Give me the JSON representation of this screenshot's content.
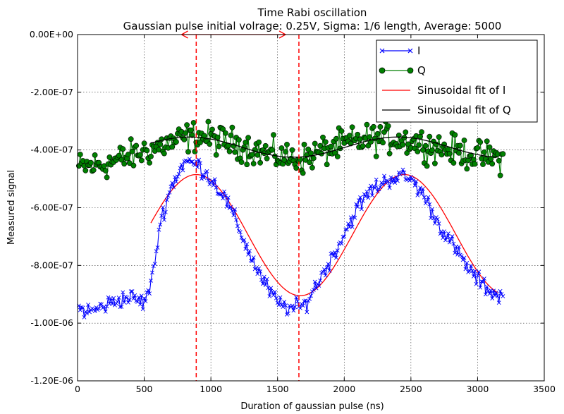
{
  "chart_data": {
    "type": "line",
    "title": "Time Rabi oscillation",
    "subtitle": "Gaussian pulse initial volrage: 0.25V, Sigma: 1/6 length, Average: 5000",
    "xlabel": "Duration of gaussian pulse (ns)",
    "ylabel": "Measured signal",
    "xlim": [
      0,
      3500
    ],
    "ylim": [
      -1.2e-06,
      0
    ],
    "xticks": [
      0,
      500,
      1000,
      1500,
      2000,
      2500,
      3000,
      3500
    ],
    "xtick_labels": [
      "0",
      "500",
      "1000",
      "1500",
      "2000",
      "2500",
      "3000",
      "3500"
    ],
    "yticks": [
      0,
      -2e-07,
      -4e-07,
      -6e-07,
      -8e-07,
      -1e-06,
      -1.2e-06
    ],
    "ytick_labels": [
      "0.00E+00",
      "-2.00E-07",
      "-4.00E-07",
      "-6.00E-07",
      "-8.00E-07",
      "-1.00E-06",
      "-1.20E-06"
    ],
    "grid": true,
    "legend_position": "top-right",
    "x_range": {
      "start": 10,
      "end": 3190,
      "step": 10
    },
    "series": [
      {
        "name": "I",
        "style": "line-x-markers",
        "color": "#0000ff",
        "description_points": [
          [
            10,
            -9.5e-07
          ],
          [
            100,
            -9.6e-07
          ],
          [
            200,
            -9.4e-07
          ],
          [
            300,
            -9.2e-07
          ],
          [
            400,
            -9.1e-07
          ],
          [
            500,
            -9.3e-07
          ],
          [
            560,
            -8.5e-07
          ],
          [
            620,
            -6.5e-07
          ],
          [
            700,
            -5.3e-07
          ],
          [
            800,
            -4.4e-07
          ],
          [
            900,
            -4.5e-07
          ],
          [
            1000,
            -5e-07
          ],
          [
            1100,
            -5.6e-07
          ],
          [
            1200,
            -6.6e-07
          ],
          [
            1300,
            -7.7e-07
          ],
          [
            1400,
            -8.6e-07
          ],
          [
            1500,
            -9.3e-07
          ],
          [
            1600,
            -9.5e-07
          ],
          [
            1700,
            -9.4e-07
          ],
          [
            1800,
            -8.6e-07
          ],
          [
            1900,
            -7.8e-07
          ],
          [
            2000,
            -6.9e-07
          ],
          [
            2100,
            -6e-07
          ],
          [
            2200,
            -5.4e-07
          ],
          [
            2300,
            -5.1e-07
          ],
          [
            2400,
            -4.9e-07
          ],
          [
            2500,
            -5e-07
          ],
          [
            2600,
            -5.6e-07
          ],
          [
            2700,
            -6.5e-07
          ],
          [
            2800,
            -7.2e-07
          ],
          [
            2900,
            -7.9e-07
          ],
          [
            3000,
            -8.5e-07
          ],
          [
            3100,
            -8.9e-07
          ],
          [
            3190,
            -9.1e-07
          ]
        ],
        "noise": 2.5e-08
      },
      {
        "name": "Q",
        "style": "line-circle-markers",
        "color": "#007f00",
        "marker_face": "#008000",
        "description_points": [
          [
            10,
            -4.6e-07
          ],
          [
            200,
            -4.5e-07
          ],
          [
            400,
            -4.2e-07
          ],
          [
            600,
            -3.9e-07
          ],
          [
            800,
            -3.6e-07
          ],
          [
            900,
            -3.5e-07
          ],
          [
            1000,
            -3.6e-07
          ],
          [
            1200,
            -3.8e-07
          ],
          [
            1400,
            -4.1e-07
          ],
          [
            1600,
            -4.3e-07
          ],
          [
            1700,
            -4.3e-07
          ],
          [
            1800,
            -4.1e-07
          ],
          [
            2000,
            -3.8e-07
          ],
          [
            2200,
            -3.6e-07
          ],
          [
            2400,
            -3.6e-07
          ],
          [
            2600,
            -3.8e-07
          ],
          [
            2800,
            -4e-07
          ],
          [
            3000,
            -4.2e-07
          ],
          [
            3190,
            -4.3e-07
          ]
        ],
        "noise": 4.5e-08
      },
      {
        "name": "Sinusoidal fit of I",
        "style": "line",
        "color": "#ff0000",
        "fit": {
          "x_start": 550,
          "x_end": 3150,
          "offset": -6.95e-07,
          "amplitude": 2.1e-07,
          "period": 1560,
          "phase_x": 890,
          "n_points": 140
        }
      },
      {
        "name": "Sinusoidal fit of Q",
        "style": "line",
        "color": "#000000",
        "fit": {
          "x_start": 550,
          "x_end": 3150,
          "offset": -3.9e-07,
          "amplitude": 3.5e-08,
          "period": 1560,
          "phase_x": 2400,
          "n_points": 140
        }
      }
    ],
    "annotations": {
      "vlines": [
        {
          "x": 890,
          "color": "#ff0000",
          "style": "dashed"
        },
        {
          "x": 1660,
          "color": "#ff0000",
          "style": "dashed"
        }
      ],
      "double_arrow": {
        "x_from": 780,
        "x_to": 1560,
        "y": 0,
        "color": "#ff0000"
      }
    }
  }
}
